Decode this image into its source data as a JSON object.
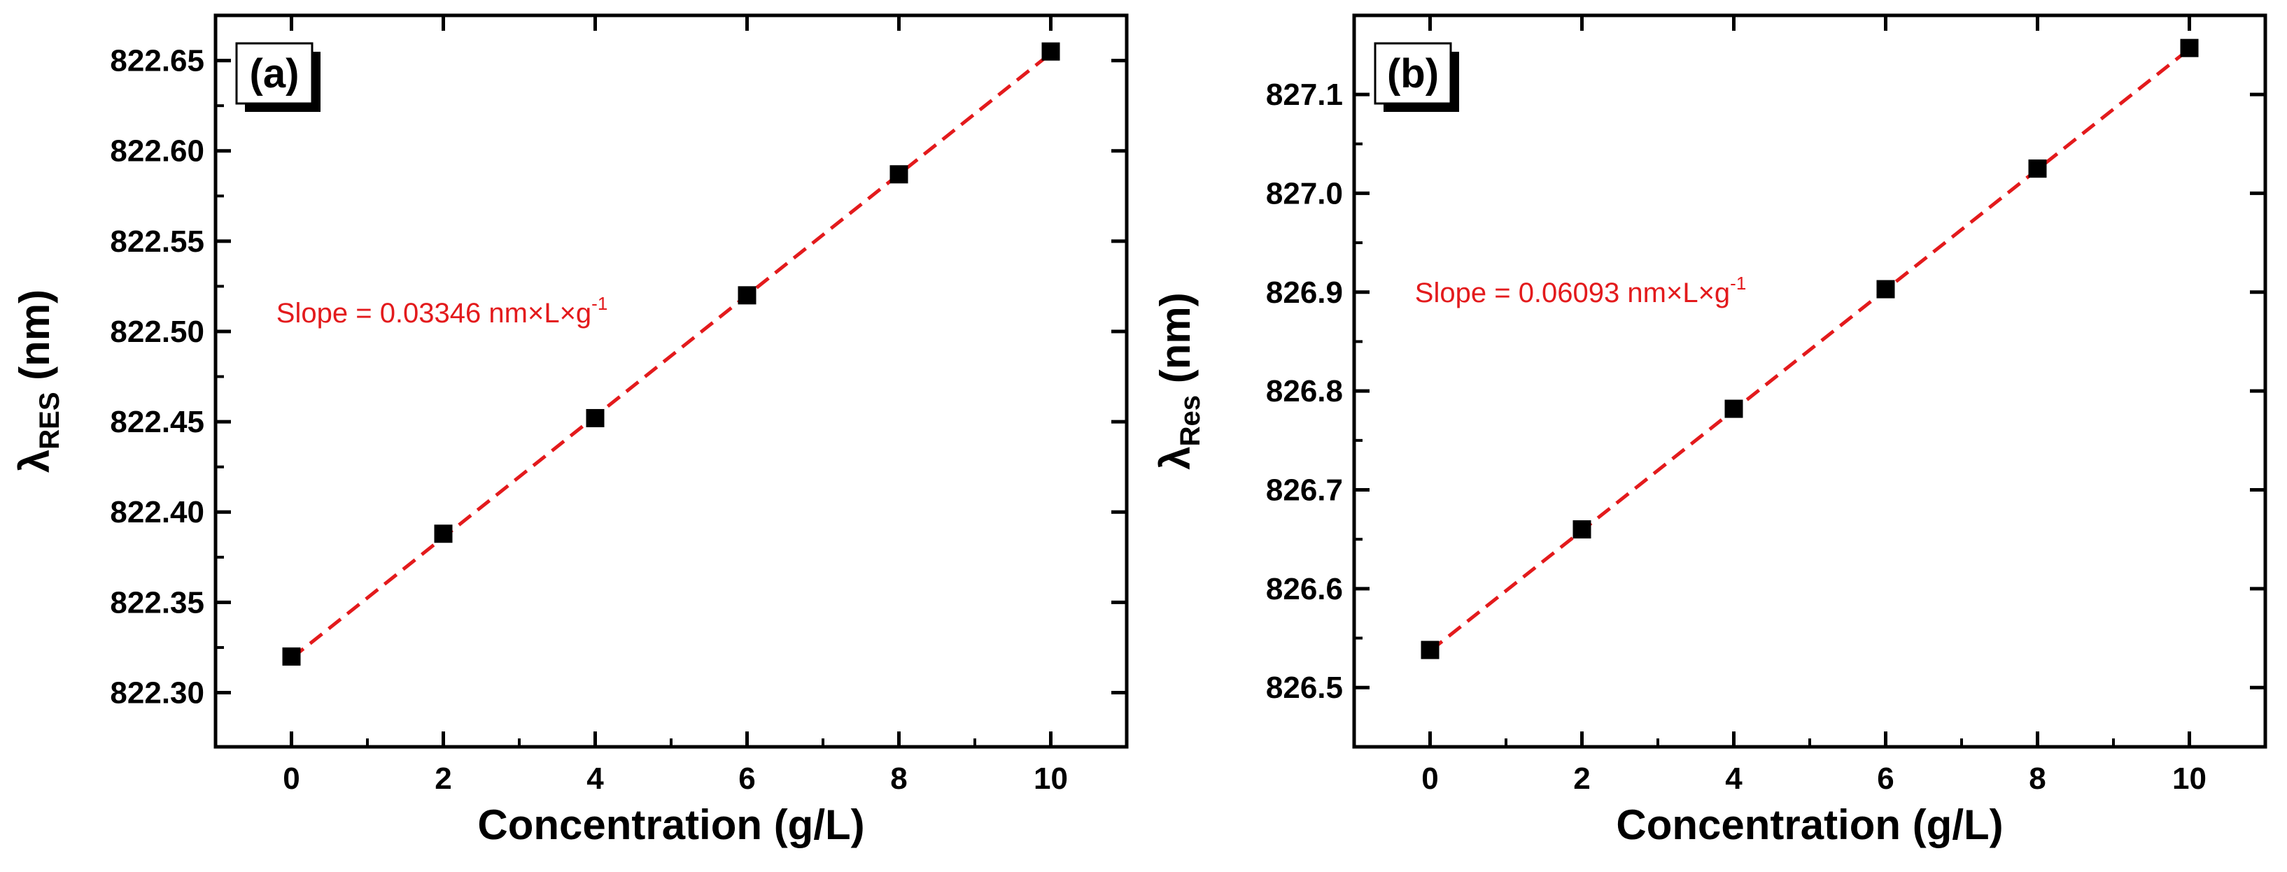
{
  "chart_data": [
    {
      "type": "scatter",
      "panel_label": "(a)",
      "xlabel": "Concentration (g/L)",
      "ylabel": {
        "symbol": "λ",
        "subscript": "RES",
        "unit": "(nm)"
      },
      "xlim": [
        -1,
        11
      ],
      "ylim": [
        822.27,
        822.675
      ],
      "xticks": [
        0,
        2,
        4,
        6,
        8,
        10
      ],
      "yticks": [
        822.3,
        822.35,
        822.4,
        822.45,
        822.5,
        822.55,
        822.6,
        822.65
      ],
      "ytick_decimals": 2,
      "x": [
        0,
        2,
        4,
        6,
        8,
        10
      ],
      "y": [
        822.32,
        822.388,
        822.452,
        822.52,
        822.587,
        822.655
      ],
      "fit": {
        "x": [
          0,
          10
        ],
        "y": [
          822.319,
          822.654
        ],
        "style": "dashed",
        "color": "#e31a1c"
      },
      "annotation": {
        "prefix": "Slope = 0.03346 nm×L×g",
        "exponent": "-1",
        "x": -0.2,
        "y": 822.505,
        "color": "#e31a1c"
      },
      "marker": {
        "shape": "square",
        "color": "#000000"
      },
      "grid": false,
      "legend": "none"
    },
    {
      "type": "scatter",
      "panel_label": "(b)",
      "xlabel": "Concentration (g/L)",
      "ylabel": {
        "symbol": "λ",
        "subscript": "Res",
        "unit": "(nm)"
      },
      "xlim": [
        -1,
        11
      ],
      "ylim": [
        826.44,
        827.18
      ],
      "xticks": [
        0,
        2,
        4,
        6,
        8,
        10
      ],
      "yticks": [
        826.5,
        826.6,
        826.7,
        826.8,
        826.9,
        827.0,
        827.1
      ],
      "ytick_decimals": 1,
      "x": [
        0,
        2,
        4,
        6,
        8,
        10
      ],
      "y": [
        826.538,
        826.66,
        826.782,
        826.903,
        827.025,
        827.147
      ],
      "fit": {
        "x": [
          0,
          10
        ],
        "y": [
          826.537,
          827.146
        ],
        "style": "dashed",
        "color": "#e31a1c"
      },
      "annotation": {
        "prefix": "Slope = 0.06093 nm×L×g",
        "exponent": "-1",
        "x": -0.2,
        "y": 826.89,
        "color": "#e31a1c"
      },
      "marker": {
        "shape": "square",
        "color": "#000000"
      },
      "grid": false,
      "legend": "none"
    }
  ]
}
